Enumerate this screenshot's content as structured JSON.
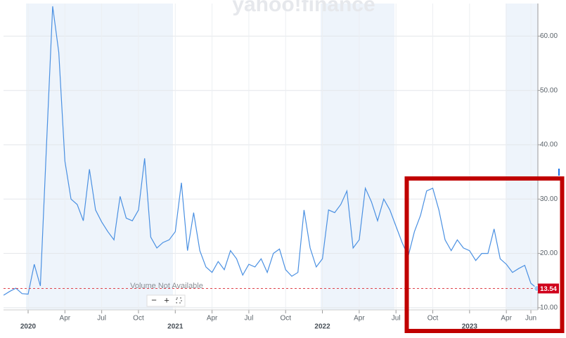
{
  "chart_data": {
    "type": "line",
    "watermark": "yahoo!finance",
    "note": "Volume Not Available",
    "zoom_controls": [
      "−",
      "+"
    ],
    "categories": [
      null,
      null,
      null,
      null,
      "2020",
      null,
      null,
      null,
      null,
      null,
      "Apr",
      null,
      null,
      null,
      null,
      null,
      "Jul",
      null,
      null,
      null,
      null,
      null,
      "Oct",
      null,
      null,
      null,
      null,
      null,
      "2021",
      null,
      null,
      null,
      null,
      null,
      "Apr",
      null,
      null,
      null,
      null,
      null,
      "Jul",
      null,
      null,
      null,
      null,
      null,
      "Oct",
      null,
      null,
      null,
      null,
      null,
      "2022",
      null,
      null,
      null,
      null,
      null,
      "Apr",
      null,
      null,
      null,
      null,
      null,
      "Jul",
      null,
      null,
      null,
      null,
      null,
      "Oct",
      null,
      null,
      null,
      null,
      null,
      "2023",
      null,
      null,
      null,
      null,
      null,
      "Apr",
      null,
      null,
      null,
      "Jun",
      null
    ],
    "values": [
      12.3,
      13,
      13.6,
      12.6,
      12.5,
      18,
      14,
      40.1,
      65.5,
      57,
      37,
      30,
      29,
      26,
      35.5,
      28,
      25.8,
      24,
      22.5,
      30.5,
      26.5,
      26,
      28,
      37.5,
      23,
      21,
      22,
      22.5,
      24,
      33,
      20.5,
      27.5,
      20.5,
      17.5,
      16.5,
      18.5,
      17,
      20.5,
      19,
      16,
      18,
      17.5,
      19,
      16.5,
      20,
      20.8,
      17,
      15.8,
      16.5,
      28,
      21,
      17.5,
      19,
      28,
      27.5,
      29,
      31.5,
      21,
      22.5,
      32,
      29.5,
      26,
      30,
      28,
      25,
      22,
      19.5,
      24,
      27,
      31.5,
      32,
      28,
      22.5,
      20.5,
      22.5,
      21,
      20.5,
      18.7,
      20,
      20,
      24.5,
      19,
      18,
      16.5,
      17.2,
      17.8,
      14.5,
      13.54
    ],
    "color": "#4a90e2",
    "ylim": [
      9.6,
      66
    ],
    "yticks": [
      {
        "value": 10,
        "label": "10.00"
      },
      {
        "value": 20,
        "label": "20.00"
      },
      {
        "value": 30,
        "label": "30.00"
      },
      {
        "value": 40,
        "label": "40.00"
      },
      {
        "value": 50,
        "label": "50.00"
      },
      {
        "value": 60,
        "label": "60.00"
      }
    ],
    "grid": true
  }
}
